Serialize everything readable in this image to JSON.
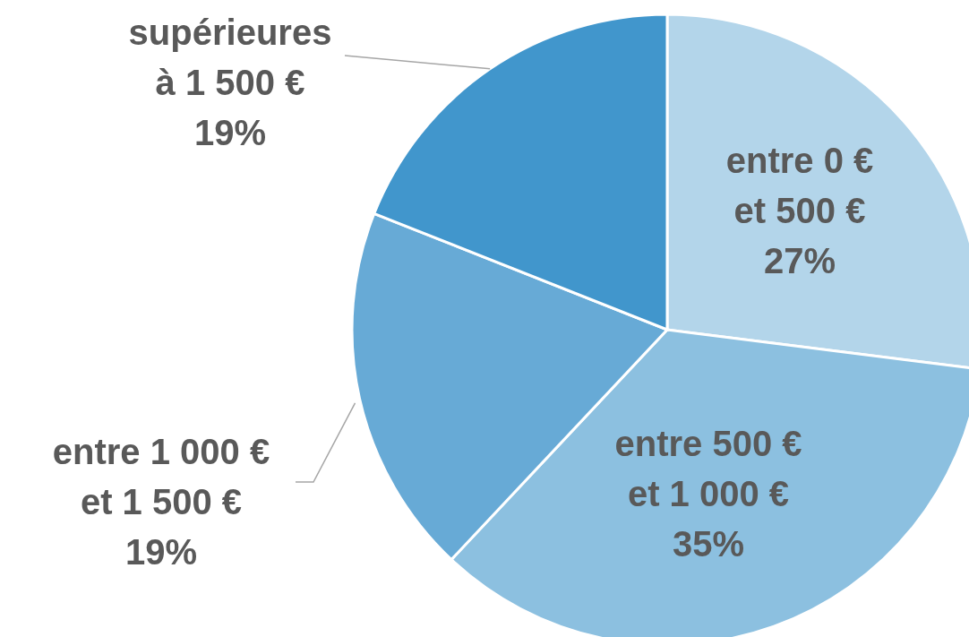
{
  "chart_data": {
    "type": "pie",
    "categories": [
      "entre 0 €\net 500 €",
      "entre 500 €\net 1 000 €",
      "entre 1 000 €\net 1 500 €",
      "supérieures\nà 1 500 €"
    ],
    "values": [
      27,
      35,
      19,
      19
    ],
    "colors": [
      "#b3d5ea",
      "#8cc0e0",
      "#67aad6",
      "#4196cc"
    ],
    "value_labels": [
      "27%",
      "35%",
      "19%",
      "19%"
    ]
  }
}
